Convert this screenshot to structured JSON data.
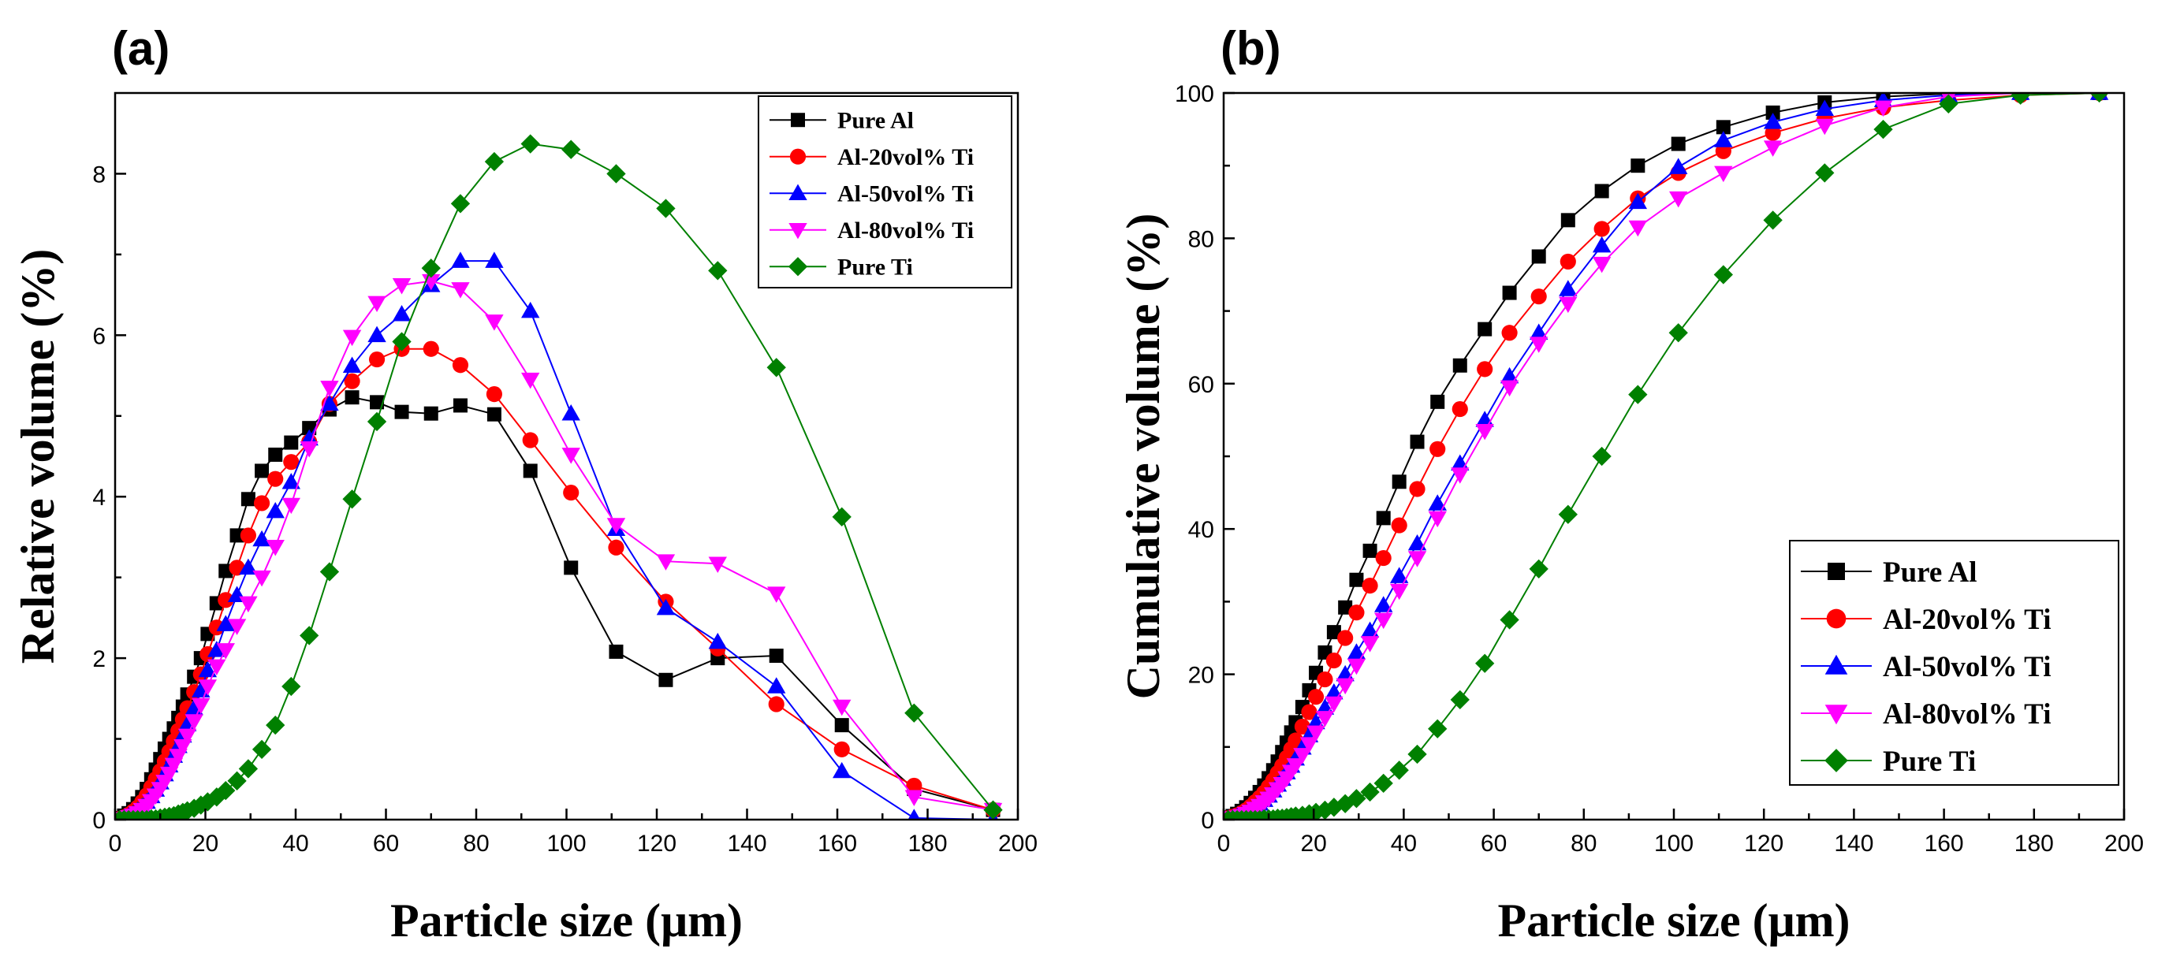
{
  "chart_data": [
    {
      "type": "line",
      "panel_label": "(a)",
      "title": "",
      "xlabel": "Particle size (μm)",
      "ylabel": "Relative volume (%)",
      "xlim": [
        0,
        200
      ],
      "ylim": [
        0,
        9
      ],
      "xticks": [
        0,
        20,
        40,
        60,
        80,
        100,
        120,
        140,
        160,
        180,
        200
      ],
      "yticks": [
        0,
        2,
        4,
        6,
        8
      ],
      "grid": false,
      "legend_position": "top-right",
      "x": [
        1.0,
        2.0,
        3.0,
        4.0,
        5.0,
        6.0,
        7.0,
        8.0,
        9.0,
        10.0,
        11.0,
        12.0,
        13.0,
        14.0,
        15.0,
        16.0,
        17.5,
        19.0,
        20.5,
        22.5,
        24.5,
        27.0,
        29.5,
        32.5,
        35.5,
        39.0,
        43.0,
        47.5,
        52.5,
        58.0,
        63.5,
        70.0,
        76.5,
        84.0,
        92.0,
        101.0,
        111.0,
        122.0,
        133.5,
        146.5,
        161.0,
        177.0,
        194.5
      ],
      "series": [
        {
          "name": "Pure Al",
          "color": "#000000",
          "marker": "square",
          "values": [
            0.02,
            0.05,
            0.08,
            0.13,
            0.2,
            0.28,
            0.38,
            0.5,
            0.62,
            0.75,
            0.88,
            1.0,
            1.13,
            1.26,
            1.4,
            1.55,
            1.77,
            2.0,
            2.3,
            2.68,
            3.08,
            3.52,
            3.97,
            4.32,
            4.52,
            4.67,
            4.85,
            5.08,
            5.23,
            5.17,
            5.05,
            5.03,
            5.13,
            5.02,
            4.32,
            3.12,
            2.08,
            1.73,
            2.0,
            2.03,
            1.17,
            0.38,
            0.12
          ]
        },
        {
          "name": "Al-20vol% Ti",
          "color": "#ff0000",
          "marker": "circle",
          "values": [
            0.01,
            0.03,
            0.06,
            0.1,
            0.15,
            0.22,
            0.3,
            0.4,
            0.5,
            0.6,
            0.72,
            0.84,
            0.97,
            1.1,
            1.24,
            1.38,
            1.58,
            1.8,
            2.05,
            2.38,
            2.72,
            3.12,
            3.52,
            3.92,
            4.22,
            4.43,
            4.68,
            5.15,
            5.43,
            5.7,
            5.83,
            5.83,
            5.63,
            5.27,
            4.7,
            4.05,
            3.37,
            2.7,
            2.12,
            1.43,
            0.87,
            0.42,
            0.12
          ]
        },
        {
          "name": "Al-50vol% Ti",
          "color": "#0000ff",
          "marker": "triangle-up",
          "values": [
            0.0,
            0.02,
            0.04,
            0.07,
            0.11,
            0.16,
            0.22,
            0.29,
            0.37,
            0.46,
            0.56,
            0.67,
            0.79,
            0.91,
            1.04,
            1.18,
            1.38,
            1.6,
            1.85,
            2.1,
            2.42,
            2.78,
            3.12,
            3.47,
            3.82,
            4.18,
            4.72,
            5.15,
            5.62,
            6.0,
            6.26,
            6.62,
            6.92,
            6.92,
            6.3,
            5.03,
            3.6,
            2.62,
            2.2,
            1.65,
            0.6,
            0.02,
            0.0
          ]
        },
        {
          "name": "Al-80vol% Ti",
          "color": "#ff00ff",
          "marker": "triangle-down",
          "values": [
            0.0,
            0.01,
            0.03,
            0.05,
            0.08,
            0.12,
            0.17,
            0.23,
            0.3,
            0.38,
            0.47,
            0.57,
            0.68,
            0.79,
            0.91,
            1.04,
            1.22,
            1.42,
            1.65,
            1.9,
            2.1,
            2.4,
            2.68,
            3.0,
            3.38,
            3.9,
            4.6,
            5.35,
            5.98,
            6.4,
            6.62,
            6.67,
            6.57,
            6.17,
            5.45,
            4.52,
            3.65,
            3.2,
            3.17,
            2.8,
            1.4,
            0.28,
            0.12
          ]
        },
        {
          "name": "Pure Ti",
          "color": "#008000",
          "marker": "diamond",
          "values": [
            0.0,
            0.0,
            0.0,
            0.0,
            0.0,
            0.0,
            0.0,
            0.01,
            0.01,
            0.02,
            0.03,
            0.04,
            0.05,
            0.07,
            0.09,
            0.11,
            0.14,
            0.18,
            0.22,
            0.28,
            0.36,
            0.48,
            0.63,
            0.87,
            1.17,
            1.65,
            2.28,
            3.07,
            3.97,
            4.93,
            5.92,
            6.83,
            7.63,
            8.15,
            8.37,
            8.3,
            8.0,
            7.57,
            6.8,
            5.6,
            3.75,
            1.32,
            0.12
          ]
        }
      ]
    },
    {
      "type": "line",
      "panel_label": "(b)",
      "title": "",
      "xlabel": "Particle size (μm)",
      "ylabel": "Cumulative volume (%)",
      "xlim": [
        0,
        200
      ],
      "ylim": [
        0,
        100
      ],
      "xticks": [
        0,
        20,
        40,
        60,
        80,
        100,
        120,
        140,
        160,
        180,
        200
      ],
      "yticks": [
        0,
        20,
        40,
        60,
        80,
        100
      ],
      "grid": false,
      "legend_position": "bottom-right",
      "x": [
        1.0,
        2.0,
        3.0,
        4.0,
        5.0,
        6.0,
        7.0,
        8.0,
        9.0,
        10.0,
        11.0,
        12.0,
        13.0,
        14.0,
        15.0,
        16.0,
        17.5,
        19.0,
        20.5,
        22.5,
        24.5,
        27.0,
        29.5,
        32.5,
        35.5,
        39.0,
        43.0,
        47.5,
        52.5,
        58.0,
        63.5,
        70.0,
        76.5,
        84.0,
        92.0,
        101.0,
        111.0,
        122.0,
        133.5,
        146.5,
        161.0,
        177.0,
        194.5
      ],
      "series": [
        {
          "name": "Pure Al",
          "color": "#000000",
          "marker": "square",
          "values": [
            0.3,
            0.5,
            0.8,
            1.2,
            1.7,
            2.3,
            3.0,
            3.8,
            4.7,
            5.7,
            6.8,
            8.0,
            9.3,
            10.6,
            12.0,
            13.4,
            15.5,
            17.8,
            20.2,
            23.0,
            25.8,
            29.2,
            33.0,
            37.0,
            41.5,
            46.5,
            52.0,
            57.5,
            62.5,
            67.5,
            72.5,
            77.5,
            82.5,
            86.5,
            90.0,
            93.0,
            95.3,
            97.3,
            98.7,
            99.5,
            99.9,
            100.0,
            100.0
          ]
        },
        {
          "name": "Al-20vol% Ti",
          "color": "#ff0000",
          "marker": "circle",
          "values": [
            0.2,
            0.4,
            0.6,
            0.9,
            1.3,
            1.8,
            2.4,
            3.0,
            3.7,
            4.5,
            5.4,
            6.4,
            7.4,
            8.5,
            9.7,
            10.9,
            12.8,
            14.8,
            16.9,
            19.3,
            21.9,
            25.0,
            28.5,
            32.2,
            36.0,
            40.5,
            45.5,
            51.0,
            56.5,
            62.0,
            67.0,
            72.0,
            76.8,
            81.3,
            85.5,
            89.0,
            92.0,
            94.5,
            96.5,
            98.0,
            99.0,
            99.7,
            100.0
          ]
        },
        {
          "name": "Al-50vol% Ti",
          "color": "#0000ff",
          "marker": "triangle-up",
          "values": [
            0.1,
            0.2,
            0.4,
            0.6,
            0.9,
            1.3,
            1.7,
            2.2,
            2.7,
            3.3,
            4.0,
            4.8,
            5.6,
            6.5,
            7.4,
            8.4,
            9.9,
            11.6,
            13.4,
            15.4,
            17.5,
            20.0,
            23.0,
            26.0,
            29.5,
            33.5,
            38.0,
            43.5,
            49.0,
            55.0,
            61.0,
            67.0,
            73.0,
            79.0,
            85.0,
            89.8,
            93.5,
            96.0,
            97.8,
            99.0,
            99.7,
            100.0,
            100.0
          ]
        },
        {
          "name": "Al-80vol% Ti",
          "color": "#ff00ff",
          "marker": "triangle-down",
          "values": [
            0.1,
            0.2,
            0.3,
            0.5,
            0.8,
            1.1,
            1.5,
            1.9,
            2.4,
            2.9,
            3.5,
            4.2,
            4.9,
            5.7,
            6.6,
            7.5,
            8.9,
            10.4,
            12.0,
            14.0,
            16.0,
            18.5,
            21.2,
            24.3,
            27.5,
            31.5,
            36.0,
            41.5,
            47.5,
            53.5,
            59.5,
            65.5,
            71.0,
            76.5,
            81.5,
            85.5,
            89.0,
            92.5,
            95.5,
            98.0,
            99.5,
            100.0,
            100.0
          ]
        },
        {
          "name": "Pure Ti",
          "color": "#008000",
          "marker": "diamond",
          "values": [
            0.0,
            0.0,
            0.0,
            0.0,
            0.0,
            0.0,
            0.0,
            0.0,
            0.1,
            0.1,
            0.1,
            0.2,
            0.2,
            0.3,
            0.4,
            0.5,
            0.6,
            0.8,
            1.0,
            1.3,
            1.7,
            2.2,
            2.9,
            3.8,
            5.0,
            6.8,
            9.0,
            12.5,
            16.5,
            21.5,
            27.5,
            34.5,
            42.0,
            50.0,
            58.5,
            67.0,
            75.0,
            82.5,
            89.0,
            95.0,
            98.5,
            99.7,
            100.0
          ]
        }
      ]
    }
  ]
}
